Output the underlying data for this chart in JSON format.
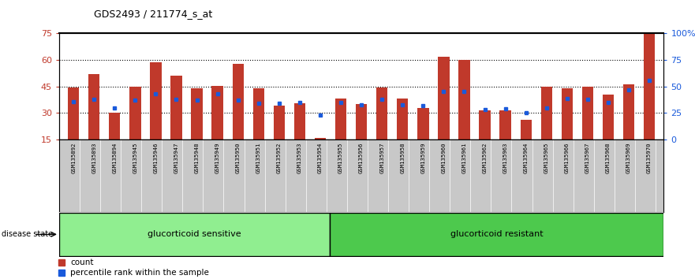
{
  "title": "GDS2493 / 211774_s_at",
  "samples": [
    "GSM135892",
    "GSM135893",
    "GSM135894",
    "GSM135945",
    "GSM135946",
    "GSM135947",
    "GSM135948",
    "GSM135949",
    "GSM135950",
    "GSM135951",
    "GSM135952",
    "GSM135953",
    "GSM135954",
    "GSM135955",
    "GSM135956",
    "GSM135957",
    "GSM135958",
    "GSM135959",
    "GSM135960",
    "GSM135961",
    "GSM135962",
    "GSM135963",
    "GSM135964",
    "GSM135965",
    "GSM135966",
    "GSM135967",
    "GSM135968",
    "GSM135969",
    "GSM135970"
  ],
  "counts": [
    44.5,
    52.0,
    30.0,
    45.0,
    58.5,
    51.0,
    44.0,
    45.5,
    58.0,
    44.0,
    34.0,
    35.5,
    16.0,
    38.0,
    35.0,
    44.5,
    38.0,
    33.0,
    62.0,
    60.0,
    31.5,
    31.5,
    26.0,
    45.0,
    44.0,
    45.0,
    40.5,
    46.0,
    75.0
  ],
  "percentile_ranks": [
    36,
    38,
    30,
    37,
    43,
    38,
    37,
    43,
    37,
    34,
    34,
    35,
    23,
    35,
    33,
    38,
    33,
    32,
    45,
    45,
    28,
    29,
    25,
    30,
    39,
    38,
    35,
    47,
    56
  ],
  "sensitive_count": 13,
  "resistant_count": 16,
  "ylim_left": [
    15,
    75
  ],
  "yticks_left": [
    15,
    30,
    45,
    60,
    75
  ],
  "grid_lines": [
    30,
    45,
    60
  ],
  "ylim_right": [
    0,
    100
  ],
  "yticks_right": [
    0,
    25,
    50,
    75,
    100
  ],
  "bar_color": "#C0392B",
  "dot_color": "#1A5ADB",
  "sensitive_color": "#90EE90",
  "resistant_color": "#4DC94D",
  "group_label_sensitive": "glucorticoid sensitive",
  "group_label_resistant": "glucorticoid resistant",
  "disease_state_label": "disease state",
  "legend_count": "count",
  "legend_percentile": "percentile rank within the sample",
  "tick_area_color": "#C8C8C8",
  "bar_bottom": 15,
  "bar_width": 0.55
}
